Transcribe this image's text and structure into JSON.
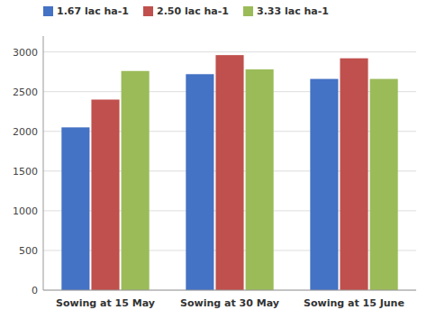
{
  "chart_data": {
    "type": "bar",
    "categories": [
      "Sowing at 15 May",
      "Sowing at 30 May",
      "Sowing at 15 June"
    ],
    "series": [
      {
        "name": "1.67 lac ha-1",
        "color": "#4472C4",
        "values": [
          2050,
          2720,
          2660
        ]
      },
      {
        "name": "2.50 lac ha-1",
        "color": "#C0504D",
        "values": [
          2400,
          2960,
          2920
        ]
      },
      {
        "name": "3.33 lac ha-1",
        "color": "#9BBB59",
        "values": [
          2760,
          2780,
          2660
        ]
      }
    ],
    "ylim": [
      0,
      3200
    ],
    "yticks": [
      0,
      500,
      1000,
      1500,
      2000,
      2500,
      3000
    ],
    "grid": true,
    "legend": "upper left"
  }
}
